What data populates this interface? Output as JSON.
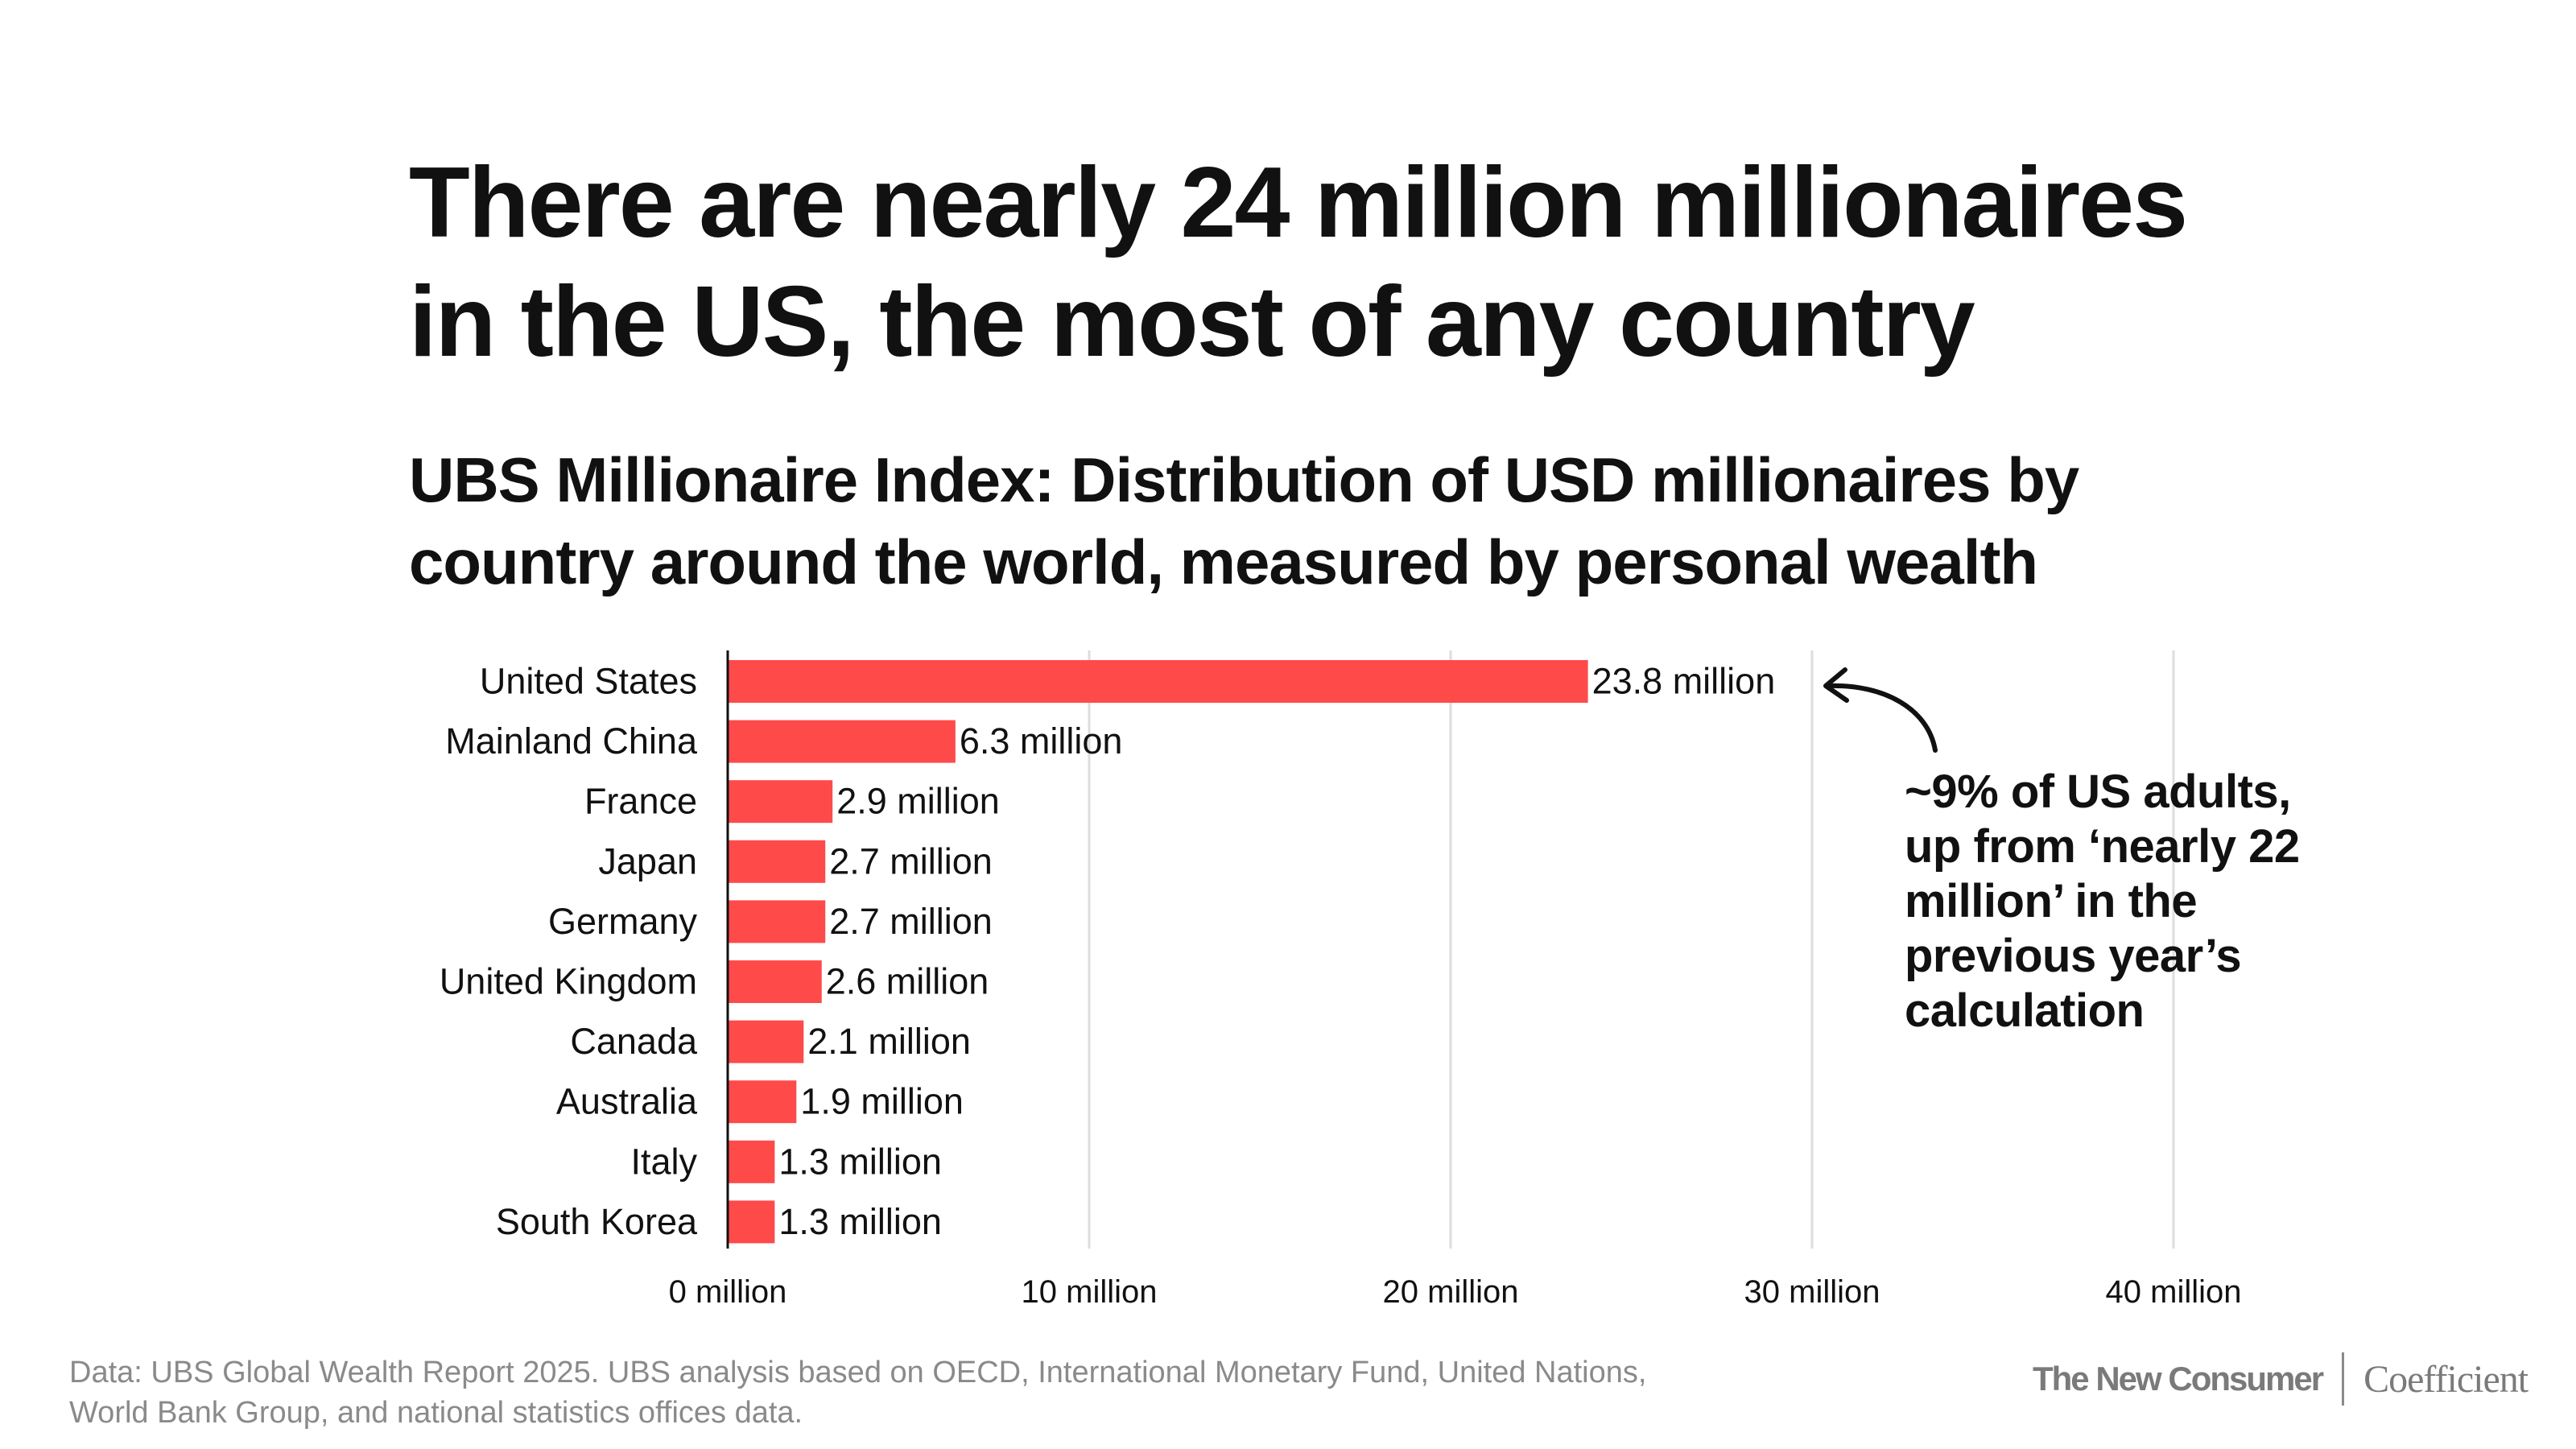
{
  "title": "There are nearly 24 million millionaires in the US, the most of any country",
  "subtitle": "UBS Millionaire Index: Distribution of USD millionaires by country around the world, measured by personal wealth",
  "annotation": "~9% of US adults, up from ‘nearly 22 million’ in the previous year’s calculation",
  "footer": {
    "source_line1": "Data: UBS Global Wealth Report 2025. UBS analysis based on OECD, International Monetary Fund, United Nations,",
    "source_line2": "World Bank Group, and national statistics offices data.",
    "logo1": "The New Consumer",
    "logo2": "Coefficient"
  },
  "colors": {
    "bar": "#ff4a4a",
    "grid": "#dddddd",
    "axis": "#111111"
  },
  "chart_data": {
    "type": "bar",
    "orientation": "horizontal",
    "title": "UBS Millionaire Index: Distribution of USD millionaires by country around the world, measured by personal wealth",
    "xlabel": "",
    "ylabel": "",
    "unit": "million",
    "categories": [
      "United States",
      "Mainland China",
      "France",
      "Japan",
      "Germany",
      "United Kingdom",
      "Canada",
      "Australia",
      "Italy",
      "South Korea"
    ],
    "values": [
      23.8,
      6.3,
      2.9,
      2.7,
      2.7,
      2.6,
      2.1,
      1.9,
      1.3,
      1.3
    ],
    "data_labels": [
      "23.8 million",
      "6.3 million",
      "2.9 million",
      "2.7 million",
      "2.7 million",
      "2.6 million",
      "2.1 million",
      "1.9 million",
      "1.3 million",
      "1.3 million"
    ],
    "xlim": [
      0,
      40
    ],
    "xticks": [
      0,
      10,
      20,
      30,
      40
    ],
    "xtick_labels": [
      "0 million",
      "10 million",
      "20 million",
      "30 million",
      "40 million"
    ],
    "grid": true
  }
}
